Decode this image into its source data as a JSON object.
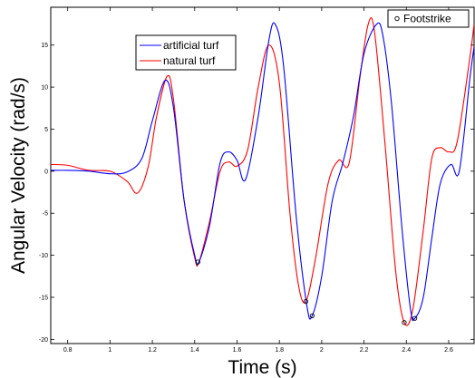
{
  "chart_data": {
    "type": "line",
    "xlabel": "Time (s)",
    "ylabel": "Angular Velocity (rad/s)",
    "xlim": [
      0.72,
      2.72
    ],
    "ylim": [
      -20.5,
      19.5
    ],
    "xticks": [
      0.8,
      1,
      1.2,
      1.4,
      1.6,
      1.8,
      2,
      2.2,
      2.4,
      2.6
    ],
    "xtick_labels": [
      "0.8",
      "1",
      "1.2",
      "1.4",
      "1.6",
      "1.8",
      "2",
      "2.2",
      "2.4",
      "2.6"
    ],
    "yticks": [
      -20,
      -15,
      -10,
      -5,
      0,
      5,
      10,
      15
    ],
    "ytick_labels": [
      "-20",
      "-15",
      "-10",
      "-5",
      "0",
      "5",
      "10",
      "15"
    ],
    "grid": false,
    "legend_position": "top-left",
    "series": [
      {
        "name": "artificial turf",
        "color": "#0000ff",
        "x": [
          0.72,
          0.8,
          0.9,
          1.0,
          1.08,
          1.15,
          1.2,
          1.26,
          1.3,
          1.35,
          1.4,
          1.42,
          1.47,
          1.52,
          1.56,
          1.6,
          1.64,
          1.7,
          1.75,
          1.78,
          1.82,
          1.88,
          1.93,
          1.955,
          2.0,
          2.05,
          2.1,
          2.15,
          2.2,
          2.26,
          2.29,
          2.33,
          2.38,
          2.42,
          2.44,
          2.48,
          2.52,
          2.56,
          2.61,
          2.65,
          2.7,
          2.72
        ],
        "y": [
          0.1,
          0.1,
          0.0,
          -0.3,
          -0.1,
          1.5,
          6.0,
          10.8,
          7.5,
          -3.5,
          -10.0,
          -10.8,
          -6.5,
          1.0,
          2.3,
          1.3,
          -1.0,
          6.5,
          15.5,
          17.5,
          12.5,
          -5.5,
          -16.0,
          -17.2,
          -12.5,
          -3.5,
          1.0,
          6.5,
          14.0,
          17.5,
          16.0,
          8.0,
          -7.0,
          -16.5,
          -17.5,
          -15.0,
          -8.0,
          -1.5,
          0.8,
          0.0,
          11.0,
          14.8
        ]
      },
      {
        "name": "natural turf",
        "color": "#ff0000",
        "x": [
          0.72,
          0.8,
          0.9,
          1.0,
          1.08,
          1.13,
          1.18,
          1.22,
          1.27,
          1.3,
          1.35,
          1.4,
          1.42,
          1.47,
          1.52,
          1.56,
          1.6,
          1.65,
          1.7,
          1.75,
          1.8,
          1.85,
          1.89,
          1.925,
          1.97,
          2.03,
          2.08,
          2.13,
          2.18,
          2.22,
          2.25,
          2.3,
          2.35,
          2.39,
          2.43,
          2.48,
          2.52,
          2.56,
          2.6,
          2.64,
          2.7,
          2.72
        ],
        "y": [
          0.8,
          0.7,
          0.1,
          0.0,
          -1.2,
          -2.6,
          0.5,
          6.5,
          11.3,
          8.5,
          -3.5,
          -10.3,
          -10.8,
          -6.0,
          0.0,
          1.1,
          0.6,
          2.5,
          10.0,
          15.0,
          10.5,
          -5.0,
          -13.5,
          -15.5,
          -10.5,
          -1.5,
          1.3,
          1.0,
          11.0,
          17.5,
          16.5,
          3.0,
          -12.0,
          -18.0,
          -16.5,
          -7.0,
          1.5,
          2.8,
          2.3,
          3.5,
          13.5,
          17.5
        ]
      }
    ],
    "footstrikes": {
      "x": [
        1.415,
        1.925,
        1.955,
        2.39,
        2.44
      ],
      "y": [
        -10.8,
        -15.5,
        -17.2,
        -18.0,
        -17.5
      ]
    },
    "legends": {
      "main": [
        "artificial turf",
        "natural turf"
      ],
      "footstrike": "Footstrike"
    }
  }
}
